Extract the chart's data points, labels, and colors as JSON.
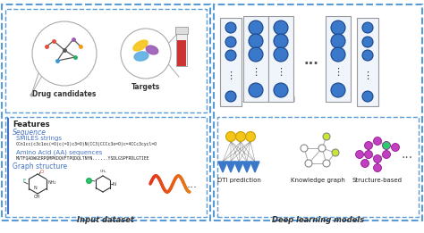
{
  "title_left": "Input dataset",
  "title_right": "Deep learning models",
  "bg_color": "#ffffff",
  "dashed_color": "#5b9bd5",
  "text_color_blue": "#4472c4",
  "text_color_black": "#222222",
  "neuron_color": "#4472c4",
  "neuron_outline": "#2255aa",
  "top_left_labels": [
    "Drug candidates",
    "Targets"
  ],
  "features_label": "Features",
  "sequence_label": "Sequence",
  "smiles_label": "SMILES strings",
  "smiles_text": "CCn1cc(c3c1oc(=O)c(=O)c3=O)N(CC3)CCCc3o=O)c=4CCc3cycl=O",
  "aa_label": "Amino Acid (AA) sequences",
  "aa_text": "MVTFQADWGERPQMPKDQVFTPQDQLTNYN......YSDLGSPFRDLGTIEE",
  "graph_label": "Graph structure",
  "dti_label": "DTI prediction",
  "knowledge_label": "Knowledge graph",
  "structure_label": "Structure-based",
  "dots": "...",
  "nn_neuron_color": "#3a78c9",
  "nn_bg_color": "#f0f4fb"
}
